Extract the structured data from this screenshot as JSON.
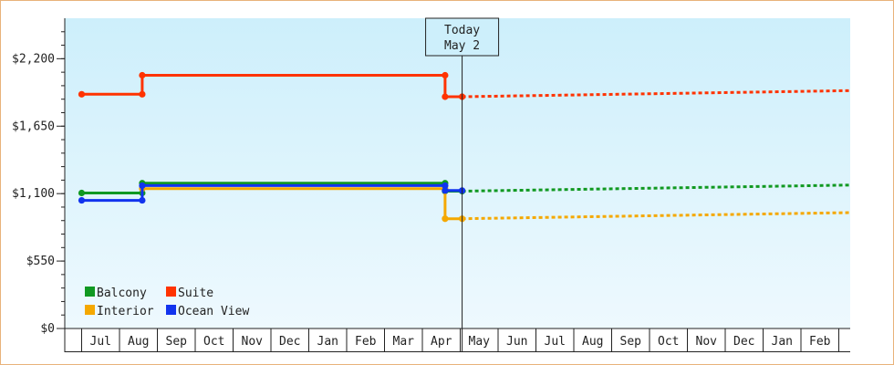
{
  "chart_data": {
    "type": "line",
    "line_shape": "step",
    "title": "",
    "xlabel": "",
    "ylabel": "",
    "ylim": [
      0,
      2530
    ],
    "y_ticks": [
      {
        "value": 0,
        "label": "$0"
      },
      {
        "value": 550,
        "label": "$550"
      },
      {
        "value": 1100,
        "label": "$1,100"
      },
      {
        "value": 1650,
        "label": "$1,650"
      },
      {
        "value": 2200,
        "label": "$2,200"
      }
    ],
    "months": [
      "Jul",
      "Aug",
      "Sep",
      "Oct",
      "Nov",
      "Dec",
      "Jan",
      "Feb",
      "Mar",
      "Apr",
      "May",
      "Jun",
      "Jul",
      "Aug",
      "Sep",
      "Oct",
      "Nov",
      "Dec",
      "Jan",
      "Feb"
    ],
    "today_marker": {
      "line1": "Today",
      "line2": "May 2",
      "month_index": 10.05
    },
    "background_gradient": [
      "#cdeffb",
      "#eef9fe"
    ],
    "legend": {
      "placement": "bottom-left"
    },
    "series": [
      {
        "name": "Balcony",
        "color": "#119922",
        "points": [
          [
            0,
            1105
          ],
          [
            1.6,
            1105
          ],
          [
            1.6,
            1185
          ],
          [
            9.6,
            1185
          ],
          [
            9.6,
            1120
          ],
          [
            10.05,
            1120
          ]
        ],
        "forecast": [
          [
            10.05,
            1120
          ],
          [
            22,
            1170
          ]
        ]
      },
      {
        "name": "Suite",
        "color": "#ff3300",
        "points": [
          [
            0,
            1910
          ],
          [
            1.6,
            1910
          ],
          [
            1.6,
            2065
          ],
          [
            9.6,
            2065
          ],
          [
            9.6,
            1890
          ],
          [
            10.05,
            1890
          ]
        ],
        "forecast": [
          [
            10.05,
            1890
          ],
          [
            22,
            1940
          ]
        ]
      },
      {
        "name": "Interior",
        "color": "#f5a800",
        "points": [
          [
            1.6,
            1140
          ],
          [
            9.6,
            1140
          ],
          [
            9.6,
            895
          ],
          [
            10.05,
            895
          ]
        ],
        "forecast": [
          [
            10.05,
            895
          ],
          [
            22,
            945
          ]
        ]
      },
      {
        "name": "Ocean View",
        "color": "#1133ee",
        "points": [
          [
            0,
            1045
          ],
          [
            1.6,
            1045
          ],
          [
            1.6,
            1165
          ],
          [
            9.6,
            1165
          ],
          [
            9.6,
            1125
          ],
          [
            10.05,
            1125
          ]
        ],
        "forecast": []
      }
    ]
  }
}
